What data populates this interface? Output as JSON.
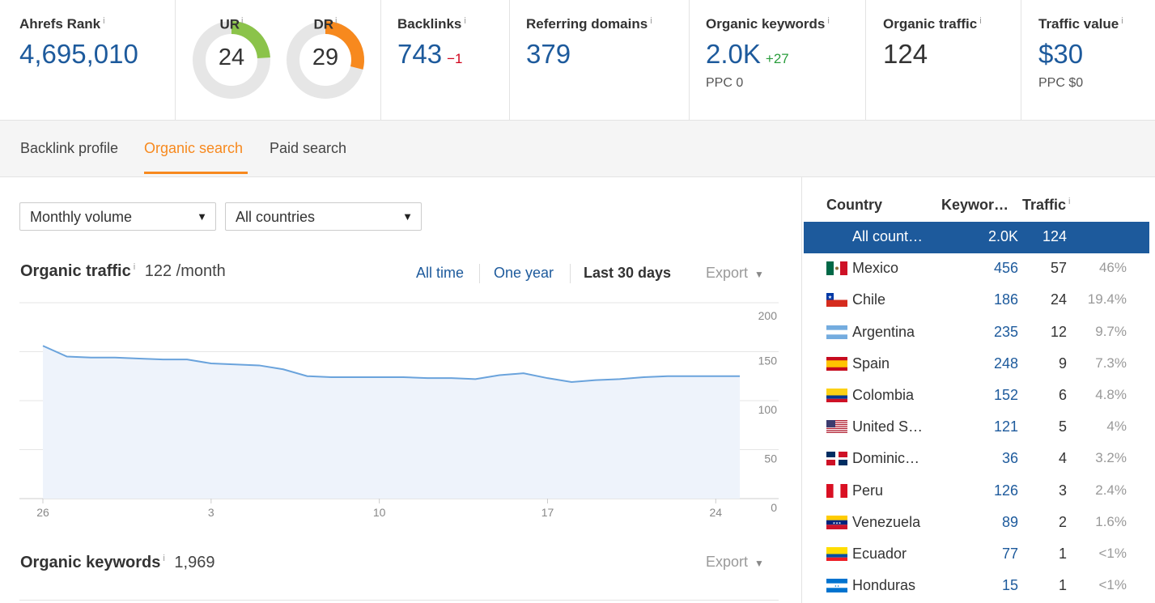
{
  "metrics": {
    "ahrefs_rank": {
      "label": "Ahrefs Rank",
      "info": "i",
      "value": "4,695,010"
    },
    "ur": {
      "label": "UR",
      "info": "i",
      "value": "24",
      "score": 24,
      "color": "#8bc34a"
    },
    "dr": {
      "label": "DR",
      "info": "i",
      "value": "29",
      "score": 29,
      "color": "#f7891e"
    },
    "backlinks": {
      "label": "Backlinks",
      "info": "i",
      "value": "743",
      "delta": "−1"
    },
    "referring_domains": {
      "label": "Referring domains",
      "info": "i",
      "value": "379"
    },
    "organic_keywords": {
      "label": "Organic keywords",
      "info": "i",
      "value": "2.0K",
      "delta": "+27",
      "sub": "PPC 0"
    },
    "organic_traffic": {
      "label": "Organic traffic",
      "info": "i",
      "value": "124"
    },
    "traffic_value": {
      "label": "Traffic value",
      "info": "i",
      "value": "$30",
      "sub": "PPC $0"
    }
  },
  "tabs": [
    {
      "label": "Backlink profile"
    },
    {
      "label": "Organic search"
    },
    {
      "label": "Paid search"
    }
  ],
  "filters": {
    "volume": "Monthly volume",
    "countries": "All countries"
  },
  "organic_traffic_section": {
    "title": "Organic traffic",
    "info": "i",
    "count": "122 /month",
    "ranges": [
      "All time",
      "One year",
      "Last 30 days"
    ],
    "export": "Export"
  },
  "organic_keywords_section": {
    "title": "Organic keywords",
    "info": "i",
    "count": "1,969",
    "export": "Export"
  },
  "chart_data": {
    "type": "area",
    "x": [
      1,
      2,
      3,
      4,
      5,
      6,
      7,
      8,
      9,
      10,
      11,
      12,
      13,
      14,
      15,
      16,
      17,
      18,
      19,
      20,
      21,
      22,
      23,
      24,
      25,
      26,
      27,
      28,
      29,
      30
    ],
    "values": [
      156,
      145,
      144,
      144,
      143,
      142,
      142,
      138,
      137,
      136,
      132,
      125,
      124,
      124,
      124,
      124,
      123,
      123,
      122,
      126,
      128,
      123,
      119,
      121,
      122,
      124,
      125,
      125,
      125,
      125
    ],
    "tick_labels": [
      "26",
      "3",
      "10",
      "17",
      "24"
    ],
    "y_ticks": [
      "200",
      "150",
      "100",
      "50",
      "0"
    ],
    "ylim": [
      0,
      200
    ],
    "grid": true,
    "color": "#6aa3dc",
    "fill": "#eef3fb"
  },
  "countries_table": {
    "headers": {
      "country": "Country",
      "keywords": "Keywor…",
      "traffic": "Traffic",
      "info": "i"
    },
    "rows": [
      {
        "name": "All count…",
        "keywords": "2.0K",
        "traffic": "124",
        "pct": "",
        "flag": "none",
        "selected": true
      },
      {
        "name": "Mexico",
        "keywords": "456",
        "traffic": "57",
        "pct": "46%",
        "flag": "mexico-flag-icon"
      },
      {
        "name": "Chile",
        "keywords": "186",
        "traffic": "24",
        "pct": "19.4%",
        "flag": "chile-flag-icon"
      },
      {
        "name": "Argentina",
        "keywords": "235",
        "traffic": "12",
        "pct": "9.7%",
        "flag": "argentina-flag-icon"
      },
      {
        "name": "Spain",
        "keywords": "248",
        "traffic": "9",
        "pct": "7.3%",
        "flag": "spain-flag-icon"
      },
      {
        "name": "Colombia",
        "keywords": "152",
        "traffic": "6",
        "pct": "4.8%",
        "flag": "colombia-flag-icon"
      },
      {
        "name": "United S…",
        "keywords": "121",
        "traffic": "5",
        "pct": "4%",
        "flag": "usa-flag-icon"
      },
      {
        "name": "Dominic…",
        "keywords": "36",
        "traffic": "4",
        "pct": "3.2%",
        "flag": "dominican-flag-icon"
      },
      {
        "name": "Peru",
        "keywords": "126",
        "traffic": "3",
        "pct": "2.4%",
        "flag": "peru-flag-icon"
      },
      {
        "name": "Venezuela",
        "keywords": "89",
        "traffic": "2",
        "pct": "1.6%",
        "flag": "venezuela-flag-icon"
      },
      {
        "name": "Ecuador",
        "keywords": "77",
        "traffic": "1",
        "pct": "<1%",
        "flag": "ecuador-flag-icon"
      },
      {
        "name": "Honduras",
        "keywords": "15",
        "traffic": "1",
        "pct": "<1%",
        "flag": "honduras-flag-icon"
      }
    ]
  }
}
